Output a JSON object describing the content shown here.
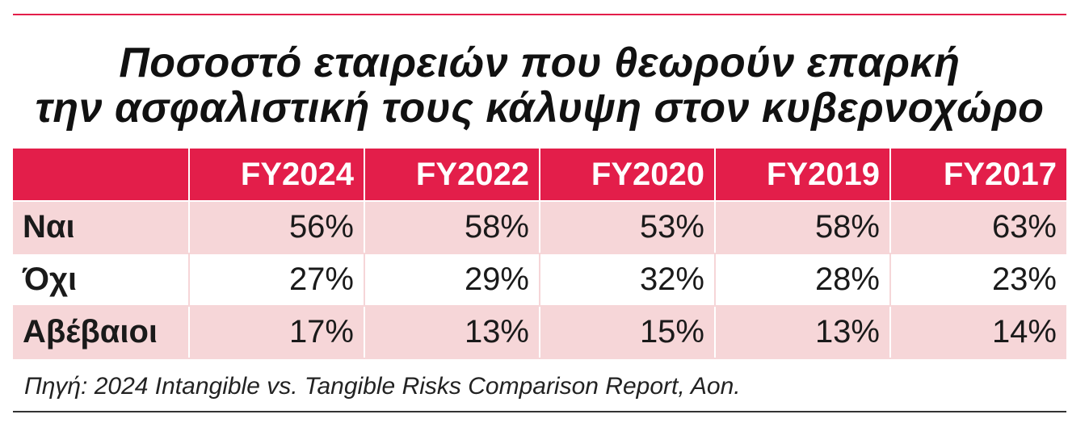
{
  "colors": {
    "accent": "#e31e4a",
    "row_shade": "#f6d6d8",
    "text": "#111111"
  },
  "title_line1": "Ποσοστό εταιρειών που θεωρούν επαρκή",
  "title_line2": "την ασφαλιστική τους κάλυψη στον κυβερνοχώρο",
  "source": "Πηγή: 2024 Intangible vs. Tangible Risks Comparison Report, Aon.",
  "chart_data": {
    "type": "table",
    "title": "Ποσοστό εταιρειών που θεωρούν επαρκή την ασφαλιστική τους κάλυψη στον κυβερνοχώρο",
    "columns": [
      "FY2024",
      "FY2022",
      "FY2020",
      "FY2019",
      "FY2017"
    ],
    "rows": [
      {
        "label": "Ναι",
        "values": [
          "56%",
          "58%",
          "53%",
          "58%",
          "63%"
        ]
      },
      {
        "label": "Όχι",
        "values": [
          "27%",
          "29%",
          "32%",
          "28%",
          "23%"
        ]
      },
      {
        "label": "Αβέβαιοι",
        "values": [
          "17%",
          "13%",
          "15%",
          "13%",
          "14%"
        ]
      }
    ]
  }
}
